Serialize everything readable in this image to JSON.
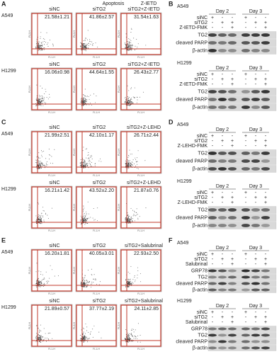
{
  "flow_panels": [
    {
      "letter": "A",
      "headers": [
        "Apoptosis",
        "Z-IETD"
      ],
      "axis_x": "FL1-H",
      "axis_y": "FL2-H",
      "rows": [
        {
          "cell": "A549",
          "plots": [
            {
              "label": "siNC",
              "value": "21.58±1.21"
            },
            {
              "label": "siTG2",
              "value": "41.86±2.57"
            },
            {
              "label": "siTG2+Z-IETD",
              "value": "31.54±1.63"
            }
          ]
        },
        {
          "cell": "H1299",
          "plots": [
            {
              "label": "siNC",
              "value": "16.06±0.98"
            },
            {
              "label": "siTG2",
              "value": "44.64±1.55"
            },
            {
              "label": "siTG2+Z-IETD",
              "value": "26.43±2.77"
            }
          ]
        }
      ]
    },
    {
      "letter": "C",
      "axis_x": "FL1-H",
      "axis_y": "FL2-H",
      "rows": [
        {
          "cell": "A549",
          "plots": [
            {
              "label": "siNC",
              "value": "21.99±2.51"
            },
            {
              "label": "siTG2",
              "value": "42.10±1.17"
            },
            {
              "label": "siTG2+Z-LEHD",
              "value": "26.71±2.44"
            }
          ]
        },
        {
          "cell": "H1299",
          "plots": [
            {
              "label": "siNC",
              "value": "16.21±1.42"
            },
            {
              "label": "siTG2",
              "value": "43.52±2.20"
            },
            {
              "label": "siTG2+Z-LEHD",
              "value": "21.87±0.76"
            }
          ]
        }
      ]
    },
    {
      "letter": "E",
      "axis_x": "FL1-H",
      "axis_y": "FL2-H",
      "rows": [
        {
          "cell": "A549",
          "plots": [
            {
              "label": "siNC",
              "value": "16.20±1.81"
            },
            {
              "label": "siTG2",
              "value": "40.05±3.01"
            },
            {
              "label": "siTG2+Salubrinal",
              "value": "22.93±2.50"
            }
          ]
        },
        {
          "cell": "H1299",
          "plots": [
            {
              "label": "siNC",
              "value": "21.89±0.57"
            },
            {
              "label": "siTG2",
              "value": "37.77±2.19"
            },
            {
              "label": "siTG2+Salubrinal",
              "value": "24.11±2.85"
            }
          ]
        }
      ]
    }
  ],
  "blot_panels": [
    {
      "letter": "B",
      "blocks": [
        {
          "cell": "A549",
          "days": [
            "Day 2",
            "Day 3"
          ],
          "conditions": [
            {
              "name": "siNC",
              "signs": [
                "+",
                "-",
                "-",
                "+",
                "-",
                "-"
              ]
            },
            {
              "name": "siTG2",
              "signs": [
                "-",
                "+",
                "+",
                "-",
                "+",
                "+"
              ]
            },
            {
              "name": "Z-IETD-FMK",
              "signs": [
                "-",
                "-",
                "+",
                "-",
                "-",
                "+"
              ]
            }
          ],
          "bands": [
            "TG2",
            "cleaved PARP",
            "β-actin"
          ]
        },
        {
          "cell": "H1299",
          "days": [
            "Day 2",
            "Day 3"
          ],
          "conditions": [
            {
              "name": "siNC",
              "signs": [
                "+",
                "-",
                "-",
                "+",
                "-",
                "-"
              ]
            },
            {
              "name": "siTG2",
              "signs": [
                "-",
                "+",
                "+",
                "-",
                "+",
                "+"
              ]
            },
            {
              "name": "Z-IETD-FMK",
              "signs": [
                "-",
                "-",
                "+",
                "-",
                "-",
                "+"
              ]
            }
          ],
          "bands": [
            "TG2",
            "cleaved PARP",
            "β-actin"
          ]
        }
      ]
    },
    {
      "letter": "D",
      "blocks": [
        {
          "cell": "A549",
          "days": [
            "Day 2",
            "Day 3"
          ],
          "conditions": [
            {
              "name": "siNC",
              "signs": [
                "+",
                "-",
                "-",
                "+",
                "-",
                "-"
              ]
            },
            {
              "name": "siTG2",
              "signs": [
                "-",
                "+",
                "+",
                "-",
                "+",
                "+"
              ]
            },
            {
              "name": "Z-LEHD-FMK",
              "signs": [
                "-",
                "-",
                "+",
                "-",
                "-",
                "+"
              ]
            }
          ],
          "bands": [
            "TG2",
            "cleaved PARP",
            "β-actin"
          ]
        },
        {
          "cell": "H1299",
          "days": [
            "Day 2",
            "Day 3"
          ],
          "conditions": [
            {
              "name": "siNC",
              "signs": [
                "+",
                "-",
                "-",
                "+",
                "-",
                "-"
              ]
            },
            {
              "name": "siTG2",
              "signs": [
                "-",
                "+",
                "+",
                "-",
                "+",
                "+"
              ]
            },
            {
              "name": "Z-LEHD-FMK",
              "signs": [
                "-",
                "-",
                "+",
                "-",
                "-",
                "+"
              ]
            }
          ],
          "bands": [
            "TG2",
            "cleaved PARP",
            "β-actin"
          ]
        }
      ]
    },
    {
      "letter": "F",
      "blocks": [
        {
          "cell": "A549",
          "days": [
            "Day 2",
            "Day 3"
          ],
          "conditions": [
            {
              "name": "siNC",
              "signs": [
                "+",
                "-",
                "-",
                "+",
                "-",
                "-"
              ]
            },
            {
              "name": "siTG2",
              "signs": [
                "-",
                "+",
                "+",
                "-",
                "+",
                "+"
              ]
            },
            {
              "name": "Salubrinal",
              "signs": [
                "-",
                "-",
                "+",
                "-",
                "-",
                "+"
              ]
            }
          ],
          "bands": [
            "GRP78",
            "TG2",
            "cleaved PARP",
            "β-actin"
          ]
        },
        {
          "cell": "H1299",
          "days": [
            "Day 2",
            "Day 3"
          ],
          "conditions": [
            {
              "name": "siNC",
              "signs": [
                "+",
                "-",
                "-",
                "+",
                "-",
                "-"
              ]
            },
            {
              "name": "siTG2",
              "signs": [
                "-",
                "+",
                "+",
                "-",
                "+",
                "+"
              ]
            },
            {
              "name": "Salubrinal",
              "signs": [
                "-",
                "-",
                "+",
                "-",
                "-",
                "+"
              ]
            }
          ],
          "bands": [
            "GRP78",
            "TG2",
            "cleaved PARP",
            "β-actin"
          ]
        }
      ]
    }
  ]
}
